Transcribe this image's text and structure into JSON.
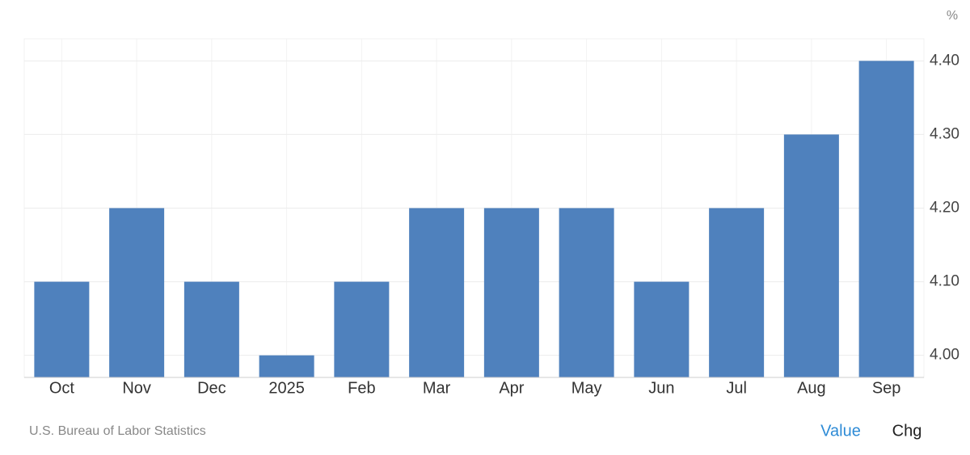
{
  "chart_data": {
    "type": "bar",
    "unit": "%",
    "categories": [
      "Oct",
      "Nov",
      "Dec",
      "2025",
      "Feb",
      "Mar",
      "Apr",
      "May",
      "Jun",
      "Jul",
      "Aug",
      "Sep"
    ],
    "values": [
      4.1,
      4.2,
      4.1,
      4.0,
      4.1,
      4.2,
      4.2,
      4.2,
      4.1,
      4.2,
      4.3,
      4.4
    ],
    "color": "#4f81bd",
    "ylim": [
      3.97,
      4.43
    ],
    "yticks": [
      {
        "value": 4.0,
        "label": "4.00"
      },
      {
        "value": 4.1,
        "label": "4.10"
      },
      {
        "value": 4.2,
        "label": "4.20"
      },
      {
        "value": 4.3,
        "label": "4.30"
      },
      {
        "value": 4.4,
        "label": "4.40"
      }
    ],
    "grid": true,
    "source": "U.S. Bureau of Labor Statistics",
    "toggles": [
      "Value",
      "Chg"
    ]
  }
}
